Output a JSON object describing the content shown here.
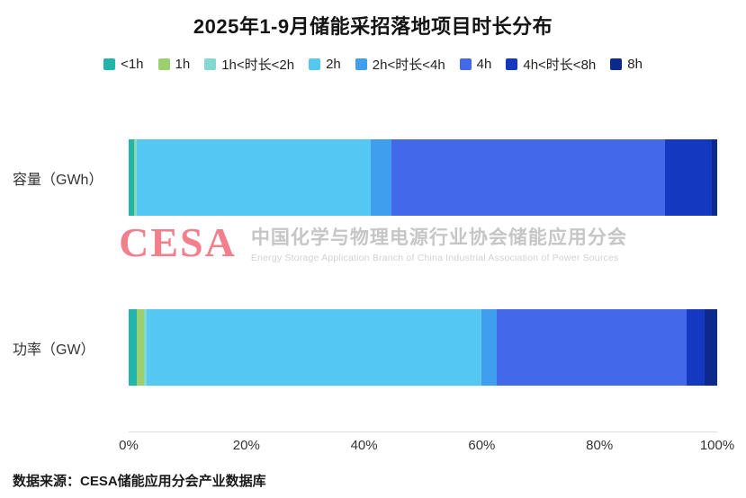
{
  "title": "2025年1-9月储能采招落地项目时长分布",
  "chart_data": {
    "type": "bar",
    "orientation": "horizontal",
    "stacked": true,
    "unit": "%",
    "categories": [
      "容量（GWh）",
      "功率（GW）"
    ],
    "series": [
      {
        "name": "<1h",
        "color": "#23b5ab",
        "values": [
          0.9,
          1.4
        ]
      },
      {
        "name": "1h",
        "color": "#9ccf6f",
        "values": [
          0.15,
          1.2
        ]
      },
      {
        "name": "1h<时长<2h",
        "color": "#82d9d2",
        "values": [
          0.35,
          0.4
        ]
      },
      {
        "name": "2h",
        "color": "#55c8f2",
        "values": [
          39.8,
          57.0
        ]
      },
      {
        "name": "2h<时长<4h",
        "color": "#3f9fee",
        "values": [
          3.4,
          2.6
        ]
      },
      {
        "name": "4h",
        "color": "#4468ea",
        "values": [
          46.5,
          32.2
        ]
      },
      {
        "name": "4h<时长<8h",
        "color": "#1538c0",
        "values": [
          8.0,
          3.0
        ]
      },
      {
        "name": "8h",
        "color": "#0b2a8c",
        "values": [
          0.9,
          2.2
        ]
      }
    ],
    "x_ticks": [
      "0%",
      "20%",
      "40%",
      "60%",
      "80%",
      "100%"
    ],
    "xlim": [
      0,
      100
    ],
    "grid": false,
    "legend_position": "top"
  },
  "watermark": {
    "logo": "CESA",
    "cn": "中国化学与物理电源行业协会储能应用分会",
    "en": "Energy Storage Application Branch of China Industrial Association of Power Sources"
  },
  "footer": "数据来源：CESA储能应用分会产业数据库"
}
